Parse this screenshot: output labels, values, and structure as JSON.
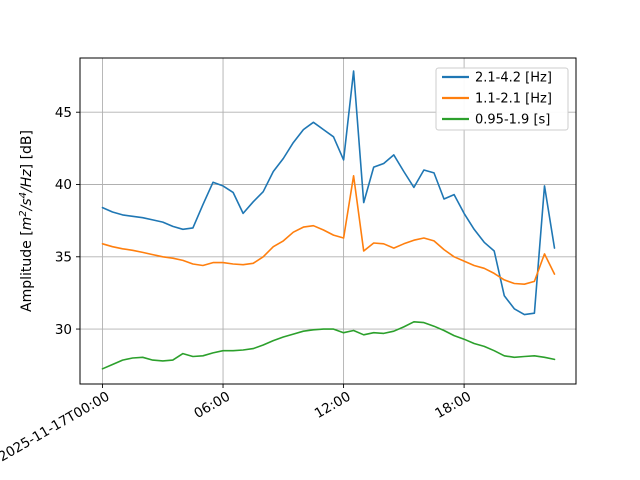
{
  "chart_data": {
    "type": "line",
    "x_axis": {
      "unit": "time",
      "tick_labels": [
        "2025-11-17T00:00",
        "06:00",
        "12:00",
        "18:00"
      ],
      "tick_hours": [
        0,
        6,
        12,
        18
      ],
      "xlim_hours": [
        -1.12,
        23.57
      ],
      "label_rotation_deg": 30
    },
    "y_axis": {
      "label_text": "Amplitude [m²/s⁴/Hz] [dB]",
      "label_parts": [
        {
          "text": "Amplitude [",
          "style": "normal"
        },
        {
          "text": "m",
          "style": "italic"
        },
        {
          "text": "2",
          "style": "italic-super"
        },
        {
          "text": "/",
          "style": "italic"
        },
        {
          "text": "s",
          "style": "italic"
        },
        {
          "text": "4",
          "style": "italic-super"
        },
        {
          "text": "/Hz",
          "style": "italic"
        },
        {
          "text": "] [dB]",
          "style": "normal"
        }
      ],
      "ticks": [
        30,
        35,
        40,
        45
      ],
      "ylim": [
        26.2,
        48.75
      ]
    },
    "grid": true,
    "grid_color": "#b0b0b0",
    "spine_color": "#000000",
    "x_hours": [
      0,
      0.5,
      1,
      1.5,
      2,
      2.5,
      3,
      3.5,
      4,
      4.5,
      5,
      5.5,
      6,
      6.5,
      7,
      7.5,
      8,
      8.5,
      9,
      9.5,
      10,
      10.5,
      11,
      11.5,
      12,
      12.5,
      13,
      13.5,
      14,
      14.5,
      15,
      15.5,
      16,
      16.5,
      17,
      17.5,
      18,
      18.5,
      19,
      19.5,
      20,
      20.5,
      21,
      21.5,
      22,
      22.5
    ],
    "series": [
      {
        "name": "2.1-4.2 [Hz]",
        "color": "#1f77b4",
        "values": [
          38.4,
          38.1,
          37.9,
          37.8,
          37.7,
          37.55,
          37.4,
          37.1,
          36.9,
          37.0,
          38.6,
          40.15,
          39.9,
          39.45,
          38.0,
          38.8,
          39.5,
          40.9,
          41.8,
          42.9,
          43.8,
          44.3,
          43.8,
          43.3,
          41.7,
          47.85,
          38.75,
          41.2,
          41.45,
          42.05,
          40.9,
          39.8,
          41.0,
          40.8,
          39.0,
          39.3,
          38.0,
          36.9,
          36.0,
          35.4,
          32.3,
          31.4,
          31.0,
          31.1,
          39.9,
          35.6
        ]
      },
      {
        "name": "1.1-2.1 [Hz]",
        "color": "#ff7f0e",
        "values": [
          35.9,
          35.7,
          35.55,
          35.45,
          35.3,
          35.15,
          35.0,
          34.9,
          34.75,
          34.5,
          34.4,
          34.6,
          34.6,
          34.5,
          34.45,
          34.55,
          35.0,
          35.7,
          36.1,
          36.7,
          37.05,
          37.15,
          36.85,
          36.5,
          36.3,
          40.6,
          35.4,
          35.95,
          35.9,
          35.6,
          35.9,
          36.15,
          36.3,
          36.1,
          35.5,
          35.0,
          34.7,
          34.4,
          34.2,
          33.85,
          33.4,
          33.15,
          33.1,
          33.3,
          35.2,
          33.8
        ]
      },
      {
        "name": "0.95-1.9 [s]",
        "color": "#2ca02c",
        "values": [
          27.25,
          27.55,
          27.85,
          28.0,
          28.05,
          27.85,
          27.8,
          27.85,
          28.3,
          28.1,
          28.15,
          28.35,
          28.5,
          28.5,
          28.55,
          28.65,
          28.9,
          29.2,
          29.45,
          29.65,
          29.85,
          29.95,
          30.0,
          30.0,
          29.75,
          29.9,
          29.6,
          29.75,
          29.7,
          29.85,
          30.15,
          30.5,
          30.45,
          30.2,
          29.9,
          29.55,
          29.3,
          29.0,
          28.8,
          28.5,
          28.15,
          28.05,
          28.1,
          28.15,
          28.05,
          27.9
        ]
      }
    ],
    "legend": {
      "position": "upper-right",
      "background": "#ffffff",
      "border_color": "#cccccc",
      "entries": [
        "2.1-4.2 [Hz]",
        "1.1-2.1 [Hz]",
        "0.95-1.9 [s]"
      ]
    }
  }
}
